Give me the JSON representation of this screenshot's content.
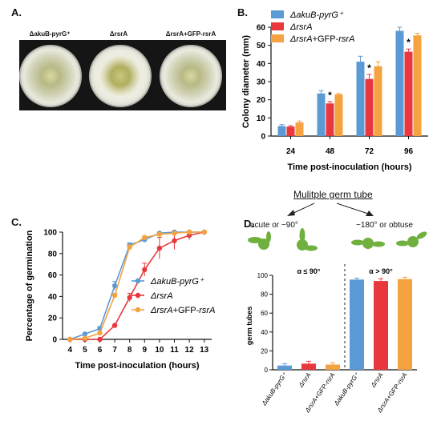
{
  "panels": {
    "a": {
      "letter": "A.",
      "plates": [
        {
          "label": "ΔakuB-pyrG⁺",
          "type": "wild-type-plate"
        },
        {
          "label": "ΔrsrA",
          "type": "mutant-plate"
        },
        {
          "label": "ΔrsrA+GFP-rsrA",
          "type": "complemented-plate"
        }
      ]
    },
    "b": {
      "letter": "B."
    },
    "c": {
      "letter": "C."
    },
    "d": {
      "letter": "D.",
      "title": "Mulitple germ tube",
      "acute_label": "acute or ~90°",
      "obtuse_label": "~180° or obtuse"
    }
  },
  "colors": {
    "blue": "#5b9bd5",
    "red": "#e8383d",
    "orange": "#f4a340",
    "hypha_green": "#70b03e"
  },
  "chart_data": [
    {
      "id": "B",
      "type": "bar",
      "xlabel": "Time post-inoculation (hours)",
      "ylabel": "Colony diameter (mm)",
      "ylim": [
        0,
        60
      ],
      "yticks": [
        0,
        10,
        20,
        30,
        40,
        50,
        60
      ],
      "categories": [
        "24",
        "48",
        "72",
        "96"
      ],
      "legend_position": "top-right",
      "series": [
        {
          "name": "ΔakuB-pyrG⁺",
          "color": "#5b9bd5",
          "values": [
            5.5,
            23.5,
            41,
            58
          ],
          "errors": [
            0.8,
            1.5,
            3,
            2
          ]
        },
        {
          "name": "ΔrsrA",
          "color": "#e8383d",
          "values": [
            5.2,
            18,
            31.5,
            46.5
          ],
          "errors": [
            0.5,
            1,
            2.5,
            1.5
          ]
        },
        {
          "name": "ΔrsrA+GFP-rsrA",
          "color": "#f4a340",
          "values": [
            7.5,
            23,
            38.5,
            55.5
          ],
          "errors": [
            0.8,
            0.5,
            2.5,
            1.2
          ]
        }
      ],
      "significance": [
        {
          "category": "48",
          "series": "ΔrsrA",
          "mark": "*"
        },
        {
          "category": "72",
          "series": "ΔrsrA",
          "mark": "*"
        },
        {
          "category": "96",
          "series": "ΔrsrA",
          "mark": "*"
        }
      ]
    },
    {
      "id": "C",
      "type": "line",
      "xlabel": "Time post-inoculation (hours)",
      "ylabel": "Percentage of germination",
      "ylim": [
        0,
        100
      ],
      "yticks": [
        0,
        20,
        40,
        60,
        80,
        100
      ],
      "x": [
        4,
        5,
        6,
        7,
        8,
        9,
        10,
        11,
        12,
        13
      ],
      "legend_position": "center-right",
      "series": [
        {
          "name": "ΔakuB-pyrG⁺",
          "color": "#5b9bd5",
          "values": [
            0,
            5,
            10,
            50,
            88,
            93,
            99,
            100,
            100,
            100
          ],
          "errors": [
            0,
            0,
            2,
            4,
            2,
            1,
            0,
            0,
            0,
            0
          ]
        },
        {
          "name": "ΔrsrA",
          "color": "#e8383d",
          "values": [
            0,
            0,
            0,
            13,
            39,
            65,
            85,
            92,
            97,
            100
          ],
          "errors": [
            0,
            0,
            0,
            0,
            4,
            6,
            10,
            8,
            4,
            0
          ]
        },
        {
          "name": "ΔrsrA+GFP-rsrA",
          "color": "#f4a340",
          "values": [
            0,
            1,
            6,
            41,
            86,
            95,
            98,
            99,
            100,
            100
          ],
          "errors": [
            0,
            0,
            0,
            2,
            2,
            1,
            0,
            0,
            0,
            0
          ]
        }
      ]
    },
    {
      "id": "D",
      "type": "bar",
      "xlabel": "",
      "ylabel": "germ tubes",
      "ylim": [
        0,
        100
      ],
      "yticks": [
        0,
        20,
        40,
        60,
        80,
        100
      ],
      "categories": [
        "ΔakuB-pyrG⁺",
        "ΔrsrA",
        "ΔrsrA+GFP-rsrA",
        "ΔakuB-pyrG⁺",
        "ΔrsrA",
        "ΔrsrA+GFP-rsrA"
      ],
      "group_labels": [
        "α ≤ 90°",
        "α > 90°"
      ],
      "values": [
        4.5,
        6.5,
        5.5,
        95.5,
        94,
        96
      ],
      "errors": [
        2,
        2.5,
        2,
        1.5,
        2.5,
        2
      ],
      "bar_colors": [
        "#5b9bd5",
        "#e8383d",
        "#f4a340",
        "#5b9bd5",
        "#e8383d",
        "#f4a340"
      ]
    }
  ]
}
